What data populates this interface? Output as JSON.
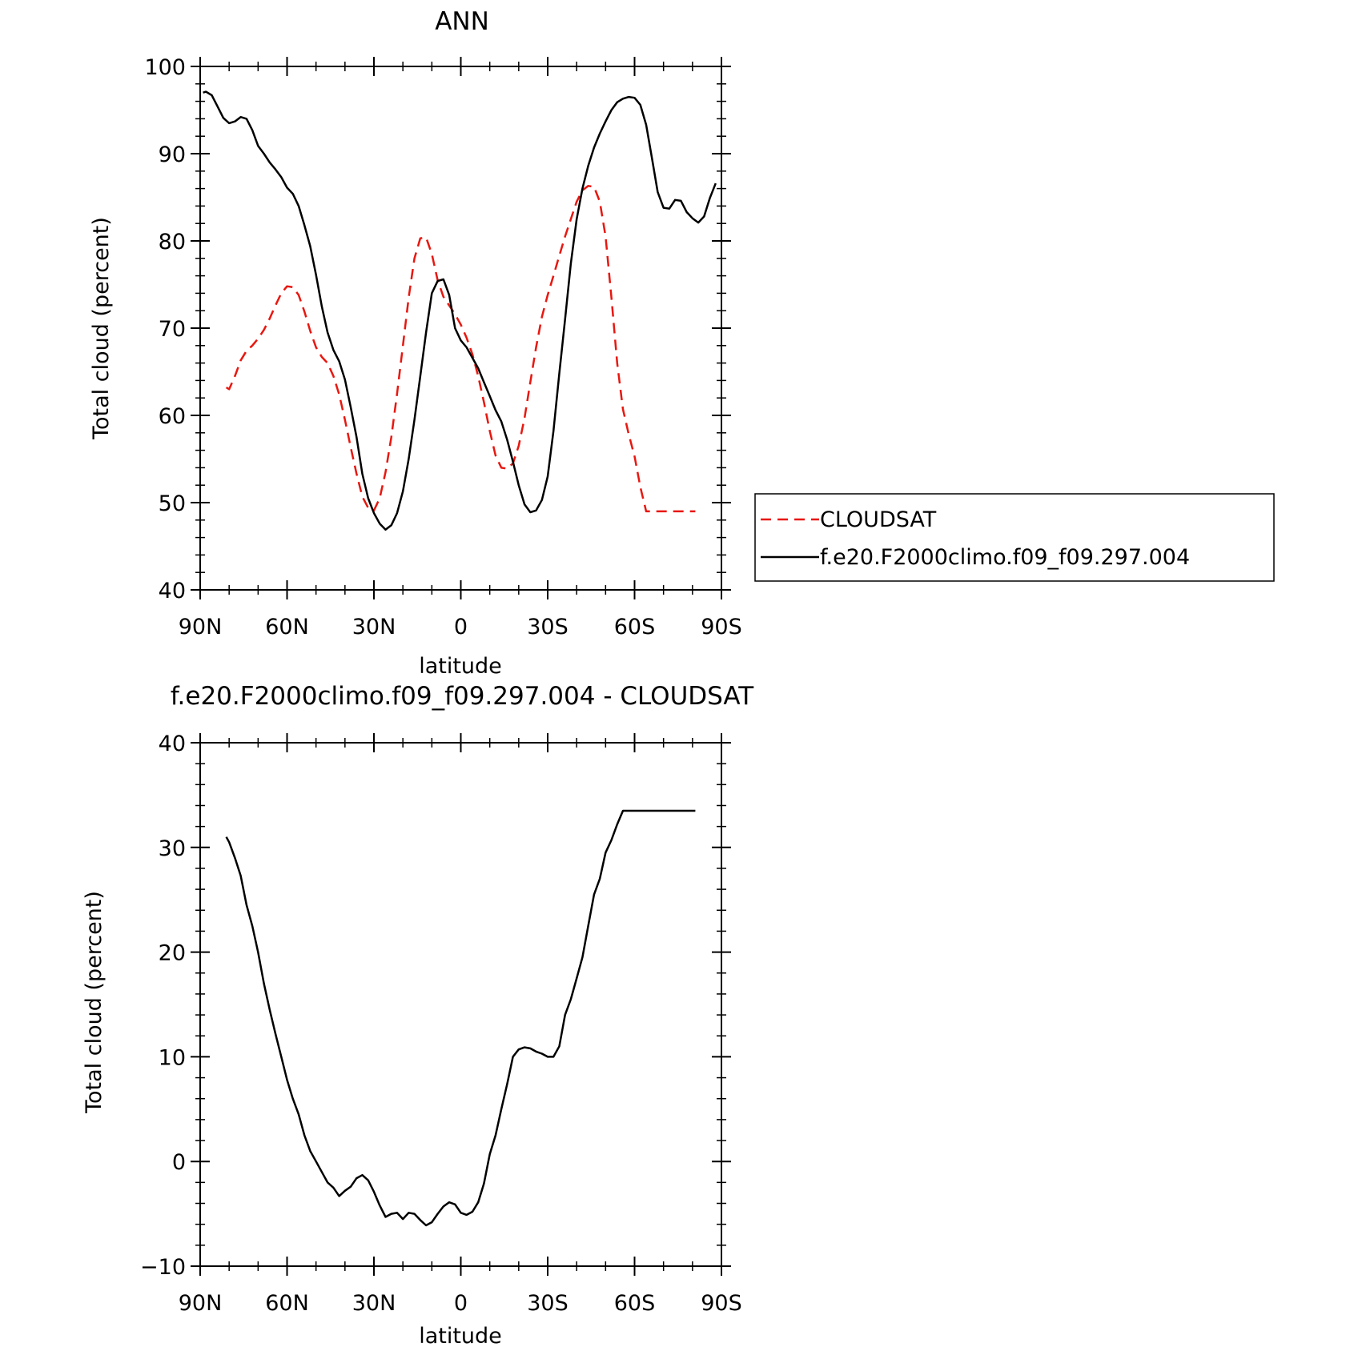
{
  "chart_data": [
    {
      "type": "line",
      "title": "ANN",
      "xlabel": "latitude",
      "ylabel": "Total cloud (percent)",
      "xlim": [
        90,
        -90
      ],
      "ylim": [
        40,
        100
      ],
      "x_ticks": [
        90,
        60,
        30,
        0,
        -30,
        -60,
        -90
      ],
      "x_tick_labels": [
        "90N",
        "60N",
        "30N",
        "0",
        "30S",
        "60S",
        "90S"
      ],
      "y_ticks": [
        40,
        50,
        60,
        70,
        80,
        90,
        100
      ],
      "y_tick_labels": [
        "40",
        "50",
        "60",
        "70",
        "80",
        "90",
        "100"
      ],
      "grid": false,
      "legend": "right",
      "series": [
        {
          "name": "CLOUDSAT",
          "color": "#e8170f",
          "dash": "dashed",
          "x": [
            81,
            80,
            78,
            76,
            74,
            72,
            70,
            68,
            66,
            64,
            62,
            60,
            58,
            56,
            54,
            52,
            50,
            48,
            46,
            44,
            42,
            40,
            38,
            36,
            34,
            32,
            30,
            28,
            26,
            24,
            22,
            20,
            18,
            16,
            14,
            12,
            10,
            8,
            6,
            4,
            2,
            0,
            -2,
            -4,
            -6,
            -8,
            -10,
            -12,
            -14,
            -16,
            -18,
            -20,
            -22,
            -24,
            -26,
            -28,
            -30,
            -32,
            -34,
            -36,
            -38,
            -40,
            -42,
            -44,
            -46,
            -48,
            -50,
            -52,
            -54,
            -56,
            -58,
            -60,
            -62,
            -64,
            -66,
            -68,
            -70,
            -72,
            -74,
            -76,
            -78,
            -80,
            -81
          ],
          "values": [
            63.2,
            63.0,
            64.5,
            66.3,
            67.4,
            68.0,
            68.8,
            69.8,
            71.1,
            72.6,
            74.0,
            74.8,
            74.7,
            73.8,
            71.9,
            69.7,
            67.8,
            66.7,
            66.0,
            64.5,
            62.4,
            59.5,
            56.3,
            53.3,
            50.7,
            49.4,
            49.1,
            50.5,
            53.5,
            57.5,
            62.5,
            68.0,
            73.5,
            78.0,
            80.3,
            80.4,
            78.5,
            75.5,
            73.6,
            72.6,
            71.6,
            70.4,
            68.9,
            67.0,
            64.5,
            61.5,
            58.2,
            55.4,
            54.0,
            53.9,
            54.5,
            56.5,
            59.7,
            63.8,
            67.8,
            71.3,
            73.8,
            76.0,
            78.3,
            80.5,
            82.5,
            84.5,
            85.8,
            86.3,
            86.2,
            84.5,
            80.5,
            73.5,
            66.0,
            60.7,
            57.8,
            55.3,
            51.8,
            49.0,
            49.0,
            49.0,
            49.0,
            49.0,
            49.0,
            49.0,
            49.0,
            49.0,
            49.0
          ]
        },
        {
          "name": "f.e20.F2000climo.f09_f09.297.004",
          "color": "#000000",
          "dash": "solid",
          "x": [
            89,
            88,
            86,
            84,
            82,
            80,
            78,
            76,
            74,
            72,
            70,
            68,
            66,
            64,
            62,
            60,
            58,
            56,
            54,
            52,
            50,
            48,
            46,
            44,
            42,
            40,
            38,
            36,
            34,
            32,
            30,
            28,
            26,
            24,
            22,
            20,
            18,
            16,
            14,
            12,
            10,
            8,
            6,
            4,
            2,
            0,
            -2,
            -4,
            -6,
            -8,
            -10,
            -12,
            -14,
            -16,
            -18,
            -20,
            -22,
            -24,
            -26,
            -28,
            -30,
            -32,
            -34,
            -36,
            -38,
            -40,
            -42,
            -44,
            -46,
            -48,
            -50,
            -52,
            -54,
            -56,
            -58,
            -60,
            -62,
            -64,
            -66,
            -68,
            -70,
            -72,
            -74,
            -76,
            -78,
            -80,
            -82,
            -84,
            -86,
            -88
          ],
          "values": [
            97.0,
            97.1,
            96.7,
            95.4,
            94.1,
            93.5,
            93.7,
            94.2,
            94.0,
            92.7,
            90.9,
            90.0,
            89.0,
            88.2,
            87.3,
            86.1,
            85.4,
            84.0,
            81.8,
            79.4,
            76.1,
            72.5,
            69.5,
            67.5,
            66.2,
            64.1,
            60.9,
            57.5,
            53.3,
            50.5,
            48.8,
            47.6,
            46.9,
            47.4,
            48.8,
            51.3,
            55.0,
            59.5,
            64.5,
            69.5,
            74.0,
            75.4,
            75.6,
            73.8,
            70.0,
            68.6,
            67.8,
            66.6,
            65.4,
            63.8,
            62.2,
            60.6,
            59.3,
            57.2,
            54.7,
            52.0,
            49.8,
            48.9,
            49.1,
            50.3,
            53.0,
            58.2,
            64.8,
            71.0,
            77.4,
            82.5,
            86.0,
            88.6,
            90.7,
            92.3,
            93.7,
            95.0,
            95.9,
            96.3,
            96.5,
            96.4,
            95.6,
            93.3,
            89.5,
            85.6,
            83.8,
            83.7,
            84.7,
            84.6,
            83.3,
            82.6,
            82.1,
            82.8,
            84.9,
            86.6
          ]
        }
      ]
    },
    {
      "type": "line",
      "title": "f.e20.F2000climo.f09_f09.297.004 - CLOUDSAT",
      "xlabel": "latitude",
      "ylabel": "Total cloud (percent)",
      "xlim": [
        90,
        -90
      ],
      "ylim": [
        -10,
        40
      ],
      "x_ticks": [
        90,
        60,
        30,
        0,
        -30,
        -60,
        -90
      ],
      "x_tick_labels": [
        "90N",
        "60N",
        "30N",
        "0",
        "30S",
        "60S",
        "90S"
      ],
      "y_ticks": [
        -10,
        0,
        10,
        20,
        30,
        40
      ],
      "y_tick_labels": [
        "−10",
        "0",
        "10",
        "20",
        "30",
        "40"
      ],
      "grid": false,
      "series": [
        {
          "color": "#000000",
          "dash": "solid",
          "x": [
            81,
            80,
            78,
            76,
            74,
            72,
            70,
            68,
            66,
            64,
            62,
            60,
            58,
            56,
            54,
            52,
            50,
            48,
            46,
            44,
            42,
            40,
            38,
            36,
            34,
            32,
            30,
            28,
            26,
            24,
            22,
            20,
            18,
            16,
            14,
            12,
            10,
            8,
            6,
            4,
            2,
            0,
            -2,
            -4,
            -6,
            -8,
            -10,
            -12,
            -14,
            -16,
            -18,
            -20,
            -22,
            -24,
            -26,
            -28,
            -30,
            -32,
            -34,
            -36,
            -38,
            -40,
            -42,
            -44,
            -46,
            -48,
            -50,
            -52,
            -54,
            -56,
            -58,
            -60,
            -62,
            -64,
            -66,
            -68,
            -70,
            -72,
            -74,
            -76,
            -78,
            -80,
            -81
          ],
          "values": [
            31.0,
            30.5,
            29.0,
            27.3,
            24.5,
            22.5,
            20.0,
            17.0,
            14.5,
            12.2,
            10.0,
            7.8,
            6.0,
            4.5,
            2.5,
            1.0,
            0.0,
            -1.0,
            -2.0,
            -2.5,
            -3.3,
            -2.8,
            -2.4,
            -1.6,
            -1.3,
            -1.8,
            -2.9,
            -4.2,
            -5.3,
            -5.0,
            -4.9,
            -5.5,
            -4.9,
            -5.0,
            -5.6,
            -6.1,
            -5.8,
            -5.0,
            -4.3,
            -3.9,
            -4.1,
            -4.9,
            -5.1,
            -4.8,
            -3.9,
            -2.1,
            0.7,
            2.5,
            5.0,
            7.4,
            10.0,
            10.7,
            10.9,
            10.8,
            10.5,
            10.3,
            10.0,
            10.0,
            11.0,
            14.0,
            15.5,
            17.5,
            19.5,
            22.5,
            25.5,
            27.0,
            29.5,
            30.7,
            32.2,
            33.5,
            33.5,
            33.5,
            33.5,
            33.5,
            33.5,
            33.5,
            33.5,
            33.5,
            33.5,
            33.5,
            33.5,
            33.5,
            33.5
          ]
        }
      ]
    }
  ]
}
